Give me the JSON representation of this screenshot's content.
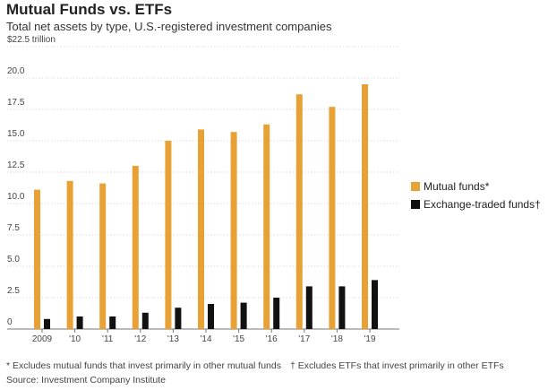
{
  "header": {
    "title": "Mutual Funds vs. ETFs",
    "subtitle": "Total net assets by type, U.S.-registered investment companies"
  },
  "footer": {
    "footnote_mutual": "* Excludes mutual funds that invest primarily in other mutual funds",
    "footnote_etf": "† Excludes ETFs that invest primarily in other ETFs",
    "source": "Source: Investment Company Institute"
  },
  "chart_data": {
    "type": "bar",
    "title": "Mutual Funds vs. ETFs",
    "subtitle": "Total net assets by type, U.S.-registered investment companies",
    "categories": [
      "2009",
      "'10",
      "'11",
      "'12",
      "'13",
      "'14",
      "'15",
      "'16",
      "'17",
      "'18",
      "'19"
    ],
    "series": [
      {
        "name": "Mutual funds*",
        "color": "#E8A135",
        "values": [
          11.1,
          11.8,
          11.6,
          13.0,
          15.0,
          15.9,
          15.7,
          16.3,
          18.7,
          17.7,
          19.5
        ]
      },
      {
        "name": "Exchange-traded funds†",
        "color": "#111111",
        "values": [
          0.8,
          1.0,
          1.0,
          1.3,
          1.7,
          2.0,
          2.1,
          2.5,
          3.4,
          3.4,
          3.9
        ]
      }
    ],
    "ylim": [
      0,
      22.5
    ],
    "yticks": [
      0,
      2.5,
      5.0,
      7.5,
      10.0,
      12.5,
      15.0,
      17.5,
      20.0,
      22.5
    ],
    "ytick_labels": [
      "0",
      "2.5",
      "5.0",
      "7.5",
      "10.0",
      "12.5",
      "15.0",
      "17.5",
      "20.0",
      "$22.5 trillion"
    ],
    "grid": true,
    "legend": "right"
  }
}
